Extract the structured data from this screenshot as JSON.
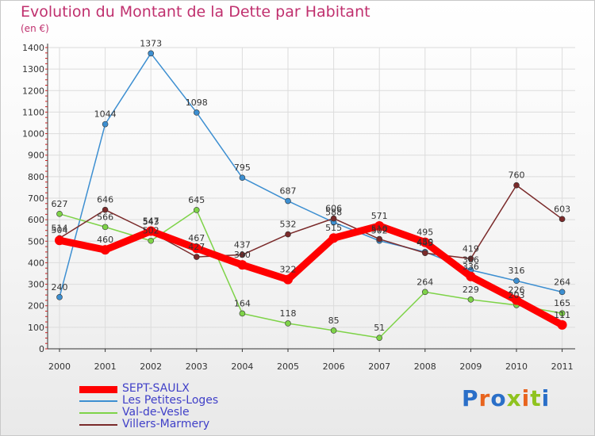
{
  "title": "Evolution du Montant de la Dette par Habitant",
  "unit_label": "(en €)",
  "logo_text": "Proxiti",
  "logo_colors": [
    "#2a6fc8",
    "#e8641e",
    "#2a6fc8",
    "#8fc31f",
    "#e8641e",
    "#8fc31f",
    "#2a6fc8"
  ],
  "chart_data": {
    "type": "line",
    "title": "Evolution du Montant de la Dette par Habitant",
    "ylabel": "(en €)",
    "xlabel": "",
    "x": [
      "2000",
      "2001",
      "2002",
      "2003",
      "2004",
      "2005",
      "2006",
      "2007",
      "2008",
      "2009",
      "2010",
      "2011"
    ],
    "ylim": [
      0,
      1400
    ],
    "yticks": [
      0,
      100,
      200,
      300,
      400,
      500,
      600,
      700,
      800,
      900,
      1000,
      1100,
      1200,
      1300,
      1400
    ],
    "grid": true,
    "legend_position": "bottom-left",
    "series": [
      {
        "name": "SEPT-SAULX",
        "color": "#ff0000",
        "emphasis": true,
        "values": [
          504,
          460,
          547,
          467,
          390,
          322,
          515,
          571,
          495,
          336,
          226,
          111
        ]
      },
      {
        "name": "Les Petites-Loges",
        "color": "#3d8fd1",
        "values": [
          240,
          1044,
          1373,
          1098,
          795,
          687,
          588,
          502,
          450,
          366,
          316,
          264
        ]
      },
      {
        "name": "Val-de-Vesle",
        "color": "#7ed348",
        "values": [
          627,
          566,
          502,
          645,
          164,
          118,
          85,
          51,
          264,
          229,
          203,
          165
        ]
      },
      {
        "name": "Villers-Marmery",
        "color": "#7a2a2a",
        "values": [
          514,
          646,
          543,
          427,
          437,
          532,
          606,
          510,
          445,
          419,
          760,
          603
        ]
      }
    ]
  }
}
